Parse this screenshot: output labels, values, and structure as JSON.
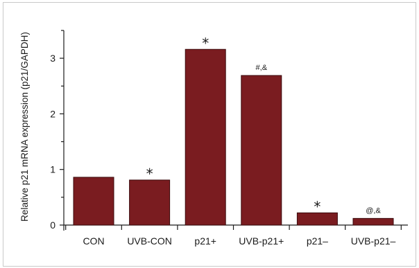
{
  "chart_data": {
    "type": "bar",
    "ylabel": "Relative p21 mRNA expression (p21/GAPDH)",
    "xlabel": "",
    "categories": [
      "CON",
      "UVB-CON",
      "p21+",
      "UVB-p21+",
      "p21–",
      "UVB-p21–"
    ],
    "values": [
      0.86,
      0.81,
      3.16,
      2.69,
      0.22,
      0.12
    ],
    "annotations": [
      "",
      "*",
      "*",
      "#,&",
      "*",
      "@,&"
    ],
    "ylim": [
      0,
      3.5
    ],
    "yticks": [
      0,
      1,
      2,
      3
    ],
    "grid": false,
    "legend": "none",
    "bar_color": "#7a1c20"
  }
}
